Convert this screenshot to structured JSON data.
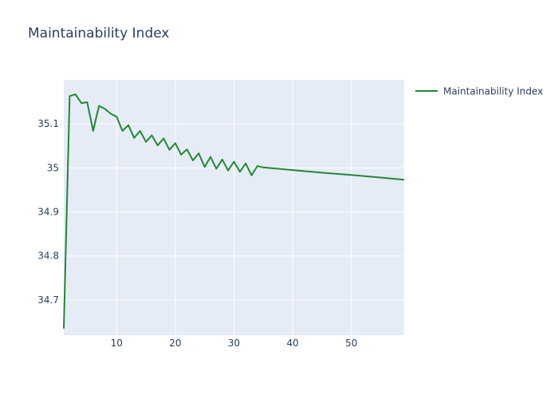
{
  "chart_data": {
    "type": "line",
    "title": "Maintainability Index",
    "xlabel": "",
    "ylabel": "",
    "xlim": [
      1,
      59
    ],
    "ylim": [
      34.62,
      35.2
    ],
    "x_ticks": [
      10,
      20,
      30,
      40,
      50
    ],
    "y_ticks": [
      34.7,
      34.8,
      34.9,
      35,
      35.1
    ],
    "x_tick_labels": [
      "10",
      "20",
      "30",
      "40",
      "50"
    ],
    "y_tick_labels": [
      "34.7",
      "34.8",
      "34.9",
      "35",
      "35.1"
    ],
    "legend_position": "top-right",
    "grid": true,
    "colors": {
      "plot_bg": "#e5ecf6",
      "grid": "#ffffff",
      "line": "#228833",
      "text": "#2a3f5f"
    },
    "series": [
      {
        "name": "Maintainability Index",
        "x": [
          1,
          2,
          3,
          4,
          5,
          6,
          7,
          8,
          9,
          10,
          11,
          12,
          13,
          14,
          15,
          16,
          17,
          18,
          19,
          20,
          21,
          22,
          23,
          24,
          25,
          26,
          27,
          28,
          29,
          30,
          31,
          32,
          33,
          34,
          35,
          40,
          45,
          46,
          50,
          55,
          59
        ],
        "y": [
          34.635,
          35.163,
          35.167,
          35.147,
          35.149,
          35.084,
          35.141,
          35.134,
          35.123,
          35.116,
          35.084,
          35.097,
          35.068,
          35.084,
          35.059,
          35.074,
          35.051,
          35.067,
          35.041,
          35.056,
          35.03,
          35.042,
          35.017,
          35.033,
          35.002,
          35.025,
          34.998,
          35.019,
          34.994,
          35.014,
          34.991,
          35.01,
          34.983,
          35.004,
          35.001,
          34.995,
          34.989,
          34.988,
          34.984,
          34.978,
          34.973
        ]
      }
    ]
  }
}
